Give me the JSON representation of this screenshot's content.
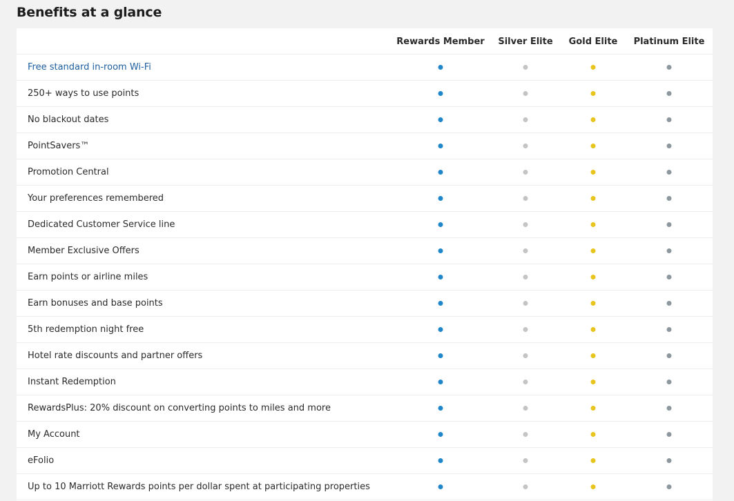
{
  "page": {
    "title": "Benefits at a glance"
  },
  "table": {
    "columns": [
      {
        "label": "Rewards Member",
        "key": "rewards"
      },
      {
        "label": "Silver Elite",
        "key": "silver"
      },
      {
        "label": "Gold Elite",
        "key": "gold"
      },
      {
        "label": "Platinum Elite",
        "key": "platinum"
      }
    ],
    "dot_colors": {
      "rewards": "#1f87c9",
      "silver": "#c4c4c4",
      "gold": "#e8c51c",
      "platinum": "#8c979e"
    },
    "rows": [
      {
        "label": "Free standard in-room Wi-Fi",
        "is_link": true
      },
      {
        "label": "250+ ways to use points",
        "is_link": false
      },
      {
        "label": "No blackout dates",
        "is_link": false
      },
      {
        "label": "PointSavers™",
        "is_link": false
      },
      {
        "label": "Promotion Central",
        "is_link": false
      },
      {
        "label": "Your preferences remembered",
        "is_link": false
      },
      {
        "label": "Dedicated Customer Service line",
        "is_link": false
      },
      {
        "label": "Member Exclusive Offers",
        "is_link": false
      },
      {
        "label": "Earn points or airline miles",
        "is_link": false
      },
      {
        "label": "Earn bonuses and base points",
        "is_link": false
      },
      {
        "label": "5th redemption night free",
        "is_link": false
      },
      {
        "label": "Hotel rate discounts and partner offers",
        "is_link": false
      },
      {
        "label": "Instant Redemption",
        "is_link": false
      },
      {
        "label": "RewardsPlus: 20% discount on converting points to miles and more",
        "is_link": false
      },
      {
        "label": "My Account",
        "is_link": false
      },
      {
        "label": "eFolio",
        "is_link": false
      },
      {
        "label": "Up to 10 Marriott Rewards points per dollar spent at participating properties",
        "is_link": false
      }
    ]
  }
}
